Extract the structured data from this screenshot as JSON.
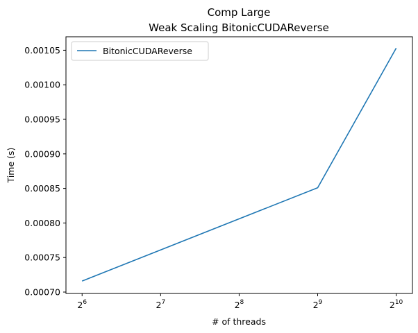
{
  "chart_data": {
    "type": "line",
    "title": "Comp Large",
    "subtitle": "Weak Scaling BitonicCUDAReverse",
    "xlabel": "# of threads",
    "ylabel": "Time (s)",
    "x_scale": "log2",
    "x_ticks": [
      {
        "value": 64,
        "base": "2",
        "exp": "6"
      },
      {
        "value": 128,
        "base": "2",
        "exp": "7"
      },
      {
        "value": 256,
        "base": "2",
        "exp": "8"
      },
      {
        "value": 512,
        "base": "2",
        "exp": "9"
      },
      {
        "value": 1024,
        "base": "2",
        "exp": "10"
      }
    ],
    "y_ticks": [
      "0.00070",
      "0.00075",
      "0.00080",
      "0.00085",
      "0.00090",
      "0.00095",
      "0.00100",
      "0.00105"
    ],
    "xlim": [
      55.5,
      1182
    ],
    "ylim": [
      0.000698,
      0.0010695
    ],
    "grid": false,
    "legend_position": "top-left",
    "series": [
      {
        "name": "BitonicCUDAReverse",
        "color": "#1f77b4",
        "x": [
          64,
          512,
          1024
        ],
        "y": [
          0.000716,
          0.000851,
          0.001053
        ]
      }
    ]
  }
}
